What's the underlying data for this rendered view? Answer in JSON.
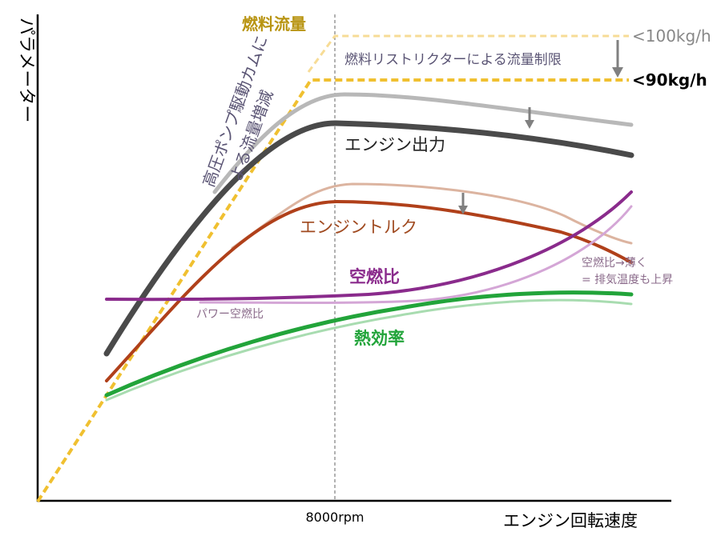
{
  "diagram": {
    "y_axis_label": "パラメーター",
    "x_axis_label": "エンジン回転速度",
    "x_tick": "8000rpm",
    "fuel_flow_label": "燃料流量",
    "limit_100": "<100kg/h",
    "limit_90": "<90kg/h",
    "restrictor_note": "燃料リストリクターによる流量制限",
    "pump_note_line1": "高圧ポンプ駆動カムに",
    "pump_note_line2": "よる流量増減",
    "power_label": "エンジン出力",
    "torque_label": "エンジントルク",
    "afr_label": "空燃比",
    "power_afr_label": "パワー空燃比",
    "lean_note_line1": "空燃比→薄く",
    "lean_note_line2": "= 排気温度も上昇",
    "efficiency_label": "熱効率"
  },
  "colors": {
    "fuel": "#f0c030",
    "fuel_light": "#f7dc96",
    "power": "#4a4a4a",
    "power_light": "#b8b8b8",
    "torque": "#b0401a",
    "torque_light": "#dcb4a0",
    "afr": "#8a2b8c",
    "afr_light": "#d4a6d6",
    "efficiency": "#22a43a",
    "efficiency_light": "#a8dcb0",
    "arrow": "#808080",
    "fuel_label_text": "#b89412",
    "note_text": "#5a5474",
    "lean_note_text": "#8a6a8a"
  }
}
